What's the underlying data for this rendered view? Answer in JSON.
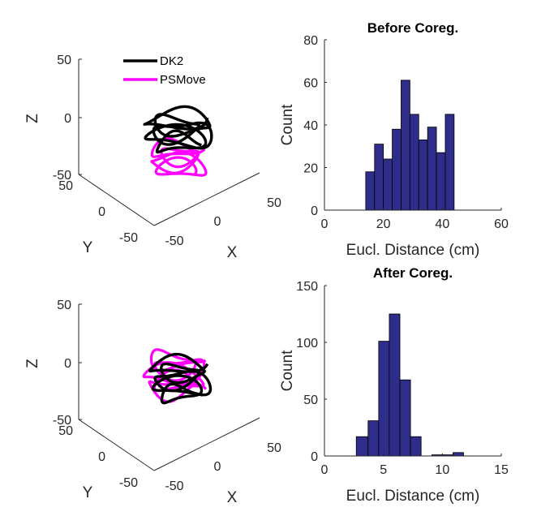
{
  "chart_data": [
    {
      "type": "line3d",
      "panel": "top-left",
      "xlabel": "X",
      "ylabel": "Y",
      "zlabel": "Z",
      "xticks": [
        "-50",
        "0",
        "50"
      ],
      "yticks": [
        "-50",
        "0",
        "50"
      ],
      "zticks": [
        "-50",
        "0",
        "50"
      ],
      "legend": {
        "position": "top",
        "entries": [
          {
            "name": "DK2",
            "color": "#000000"
          },
          {
            "name": "PSMove",
            "color": "#ff00ff"
          }
        ]
      },
      "series": [
        {
          "name": "DK2",
          "color": "#000000"
        },
        {
          "name": "PSMove",
          "color": "#ff00ff"
        }
      ]
    },
    {
      "type": "bar",
      "panel": "top-right",
      "title": "Before Coreg.",
      "xlabel": "Eucl. Distance (cm)",
      "ylabel": "Count",
      "xlim": [
        0,
        60
      ],
      "ylim": [
        0,
        80
      ],
      "xticks": [
        "0",
        "20",
        "40",
        "60"
      ],
      "yticks": [
        "0",
        "20",
        "40",
        "60",
        "80"
      ],
      "bar_color": "#2e2e8a",
      "bin_edges": [
        14,
        17,
        20,
        23,
        26,
        29,
        32,
        35,
        38,
        41,
        44
      ],
      "values": [
        18,
        31,
        24,
        38,
        61,
        45,
        33,
        39,
        27,
        45
      ]
    },
    {
      "type": "line3d",
      "panel": "bottom-left",
      "xlabel": "X",
      "ylabel": "Y",
      "zlabel": "Z",
      "xticks": [
        "-50",
        "0",
        "50"
      ],
      "yticks": [
        "-50",
        "0",
        "50"
      ],
      "zticks": [
        "-50",
        "0",
        "50"
      ],
      "series": [
        {
          "name": "DK2",
          "color": "#000000"
        },
        {
          "name": "PSMove",
          "color": "#ff00ff"
        }
      ]
    },
    {
      "type": "bar",
      "panel": "bottom-right",
      "title": "After Coreg.",
      "xlabel": "Eucl. Distance (cm)",
      "ylabel": "Count",
      "xlim": [
        0,
        15
      ],
      "ylim": [
        0,
        150
      ],
      "xticks": [
        "0",
        "5",
        "10",
        "15"
      ],
      "yticks": [
        "0",
        "50",
        "100",
        "150"
      ],
      "bar_color": "#2e2e8a",
      "bin_edges": [
        2.7,
        3.7,
        4.6,
        5.5,
        6.4,
        7.3,
        8.2,
        9.1,
        10.0,
        10.9,
        11.8
      ],
      "values": [
        17,
        31,
        101,
        125,
        67,
        17,
        0,
        1,
        1,
        3
      ]
    }
  ]
}
